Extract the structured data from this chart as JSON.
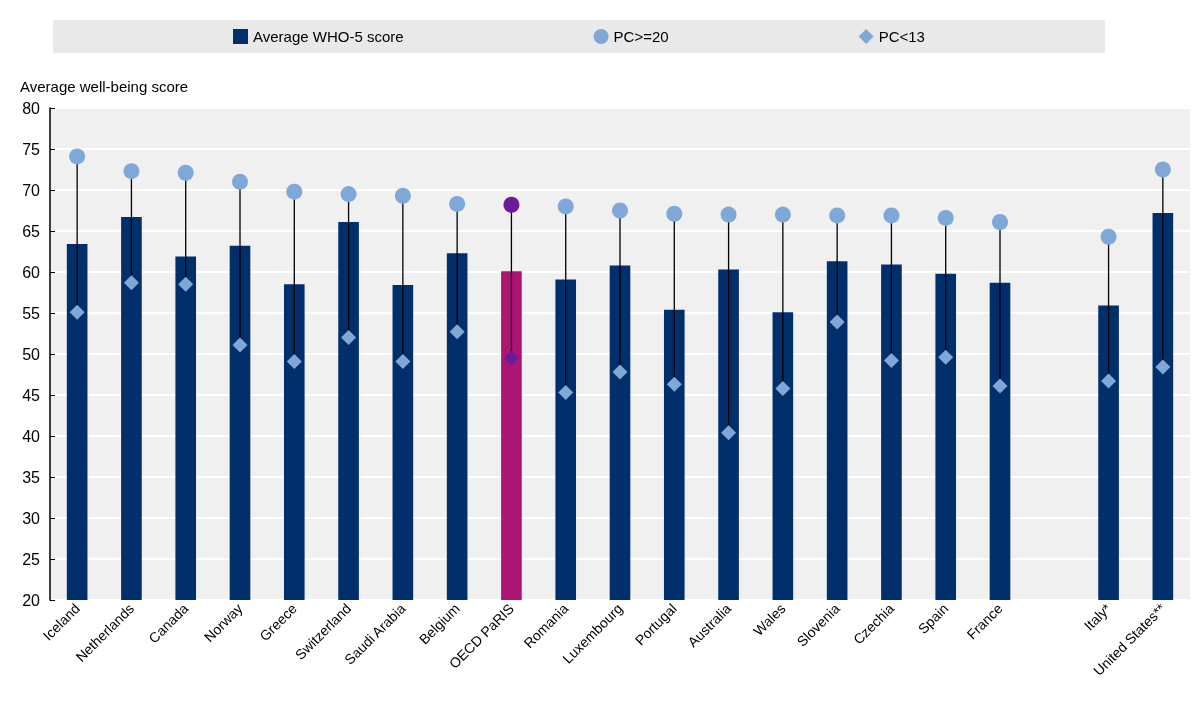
{
  "chart_data": {
    "type": "bar",
    "ylabel": "Average well-being score",
    "categories": [
      "Iceland",
      "Netherlands",
      "Canada",
      "Norway",
      "Greece",
      "Switzerland",
      "Saudi Arabia",
      "Belgium",
      "OECD PaRIS",
      "Romania",
      "Luxembourg",
      "Portugal",
      "Australia",
      "Wales",
      "Slovenia",
      "Czechia",
      "Spain",
      "France",
      null,
      "Italy*",
      "United States**"
    ],
    "series": [
      {
        "name": "Average WHO-5 score",
        "color": "#002f6c",
        "colors": [
          "#002f6c",
          "#002f6c",
          "#002f6c",
          "#002f6c",
          "#002f6c",
          "#002f6c",
          "#002f6c",
          "#002f6c",
          "#ad1573",
          "#002f6c",
          "#002f6c",
          "#002f6c",
          "#002f6c",
          "#002f6c",
          "#002f6c",
          "#002f6c",
          "#002f6c",
          "#002f6c",
          "#002f6c",
          "#002f6c",
          "#002f6c"
        ],
        "values": [
          63.4,
          66.7,
          61.9,
          63.2,
          58.5,
          66.1,
          58.4,
          62.3,
          60.1,
          59.1,
          60.8,
          55.4,
          60.3,
          55.1,
          61.3,
          60.9,
          59.8,
          58.7,
          null,
          55.9,
          67.2
        ]
      },
      {
        "name": "PC>=20",
        "type": "scatter",
        "marker": "circle",
        "color": "#7fa8d8",
        "colors": [
          "#7fa8d8",
          "#7fa8d8",
          "#7fa8d8",
          "#7fa8d8",
          "#7fa8d8",
          "#7fa8d8",
          "#7fa8d8",
          "#7fa8d8",
          "#6a1b9a",
          "#7fa8d8",
          "#7fa8d8",
          "#7fa8d8",
          "#7fa8d8",
          "#7fa8d8",
          "#7fa8d8",
          "#7fa8d8",
          "#7fa8d8",
          "#7fa8d8",
          "#7fa8d8",
          "#7fa8d8",
          "#7fa8d8"
        ],
        "values": [
          74.1,
          72.3,
          72.1,
          71.0,
          69.8,
          69.5,
          69.3,
          68.3,
          68.2,
          68.0,
          67.5,
          67.1,
          67.0,
          67.0,
          66.9,
          66.9,
          66.6,
          66.1,
          null,
          64.3,
          72.5
        ]
      },
      {
        "name": "PC<13",
        "type": "scatter",
        "marker": "diamond",
        "color": "#7fa8d8",
        "colors": [
          "#7fa8d8",
          "#7fa8d8",
          "#7fa8d8",
          "#7fa8d8",
          "#7fa8d8",
          "#7fa8d8",
          "#7fa8d8",
          "#7fa8d8",
          "#6a1b9a",
          "#7fa8d8",
          "#7fa8d8",
          "#7fa8d8",
          "#7fa8d8",
          "#7fa8d8",
          "#7fa8d8",
          "#7fa8d8",
          "#7fa8d8",
          "#7fa8d8",
          "#7fa8d8",
          "#7fa8d8",
          "#7fa8d8"
        ],
        "values": [
          55.1,
          58.7,
          58.5,
          51.1,
          49.1,
          52.0,
          49.1,
          52.7,
          49.5,
          45.3,
          47.8,
          46.3,
          40.4,
          45.8,
          53.9,
          49.2,
          49.6,
          46.1,
          null,
          46.7,
          48.4
        ]
      }
    ],
    "ylim": [
      20,
      80
    ],
    "yticks": [
      20,
      25,
      30,
      35,
      40,
      45,
      50,
      55,
      60,
      65,
      70,
      75,
      80
    ],
    "grid": "y",
    "legend": "top"
  }
}
